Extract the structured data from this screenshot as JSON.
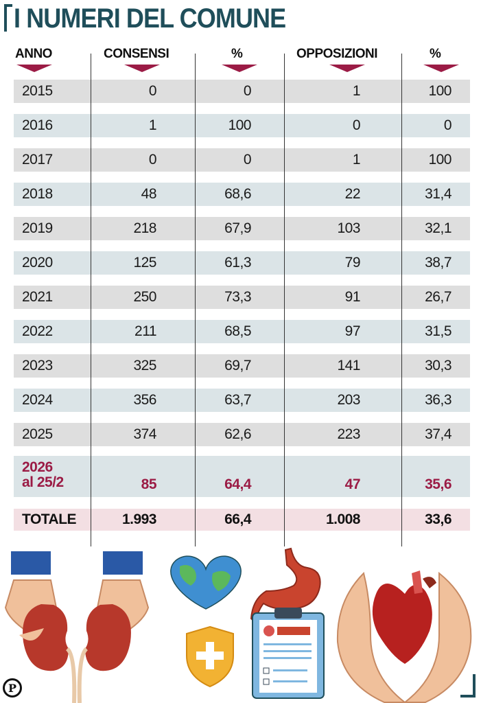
{
  "header": {
    "title": "I NUMERI DEL COMUNE"
  },
  "columns": [
    "ANNO",
    "CONSENSI",
    "%",
    "OPPOSIZIONI",
    "%"
  ],
  "colors": {
    "title": "#1f4e5a",
    "triangle": "#9b1b45",
    "highlight_text": "#9b1b45",
    "row_gray": "#dedede",
    "row_blue": "#dbe4e7",
    "row_total": "#f3dfe3"
  },
  "icons": [
    "kidneys-icon",
    "globe-heart-icon",
    "shield-cross-icon",
    "stomach-icon",
    "patient-card-icon",
    "heart-in-hands-icon",
    "publisher-logo-icon"
  ],
  "logo_text": "P",
  "chart_data": {
    "type": "table",
    "title": "I NUMERI DEL COMUNE",
    "columns": [
      "ANNO",
      "CONSENSI",
      "%",
      "OPPOSIZIONI",
      "%"
    ],
    "rows": [
      {
        "anno": "2015",
        "consensi": "0",
        "pct_consensi": "0",
        "opposizioni": "1",
        "pct_opposizioni": "100",
        "style": "gray"
      },
      {
        "anno": "2016",
        "consensi": "1",
        "pct_consensi": "100",
        "opposizioni": "0",
        "pct_opposizioni": "0",
        "style": "blue"
      },
      {
        "anno": "2017",
        "consensi": "0",
        "pct_consensi": "0",
        "opposizioni": "1",
        "pct_opposizioni": "100",
        "style": "gray"
      },
      {
        "anno": "2018",
        "consensi": "48",
        "pct_consensi": "68,6",
        "opposizioni": "22",
        "pct_opposizioni": "31,4",
        "style": "blue"
      },
      {
        "anno": "2019",
        "consensi": "218",
        "pct_consensi": "67,9",
        "opposizioni": "103",
        "pct_opposizioni": "32,1",
        "style": "gray"
      },
      {
        "anno": "2020",
        "consensi": "125",
        "pct_consensi": "61,3",
        "opposizioni": "79",
        "pct_opposizioni": "38,7",
        "style": "blue"
      },
      {
        "anno": "2021",
        "consensi": "250",
        "pct_consensi": "73,3",
        "opposizioni": "91",
        "pct_opposizioni": "26,7",
        "style": "gray"
      },
      {
        "anno": "2022",
        "consensi": "211",
        "pct_consensi": "68,5",
        "opposizioni": "97",
        "pct_opposizioni": "31,5",
        "style": "blue"
      },
      {
        "anno": "2023",
        "consensi": "325",
        "pct_consensi": "69,7",
        "opposizioni": "141",
        "pct_opposizioni": "30,3",
        "style": "gray"
      },
      {
        "anno": "2024",
        "consensi": "356",
        "pct_consensi": "63,7",
        "opposizioni": "203",
        "pct_opposizioni": "36,3",
        "style": "blue"
      },
      {
        "anno": "2025",
        "consensi": "374",
        "pct_consensi": "62,6",
        "opposizioni": "223",
        "pct_opposizioni": "37,4",
        "style": "gray"
      },
      {
        "anno": "2026",
        "anno_sub": "al 25/2",
        "consensi": "85",
        "pct_consensi": "64,4",
        "opposizioni": "47",
        "pct_opposizioni": "35,6",
        "style": "highlight"
      },
      {
        "anno": "TOTALE",
        "consensi": "1.993",
        "pct_consensi": "66,4",
        "opposizioni": "1.008",
        "pct_opposizioni": "33,6",
        "style": "total"
      }
    ]
  }
}
